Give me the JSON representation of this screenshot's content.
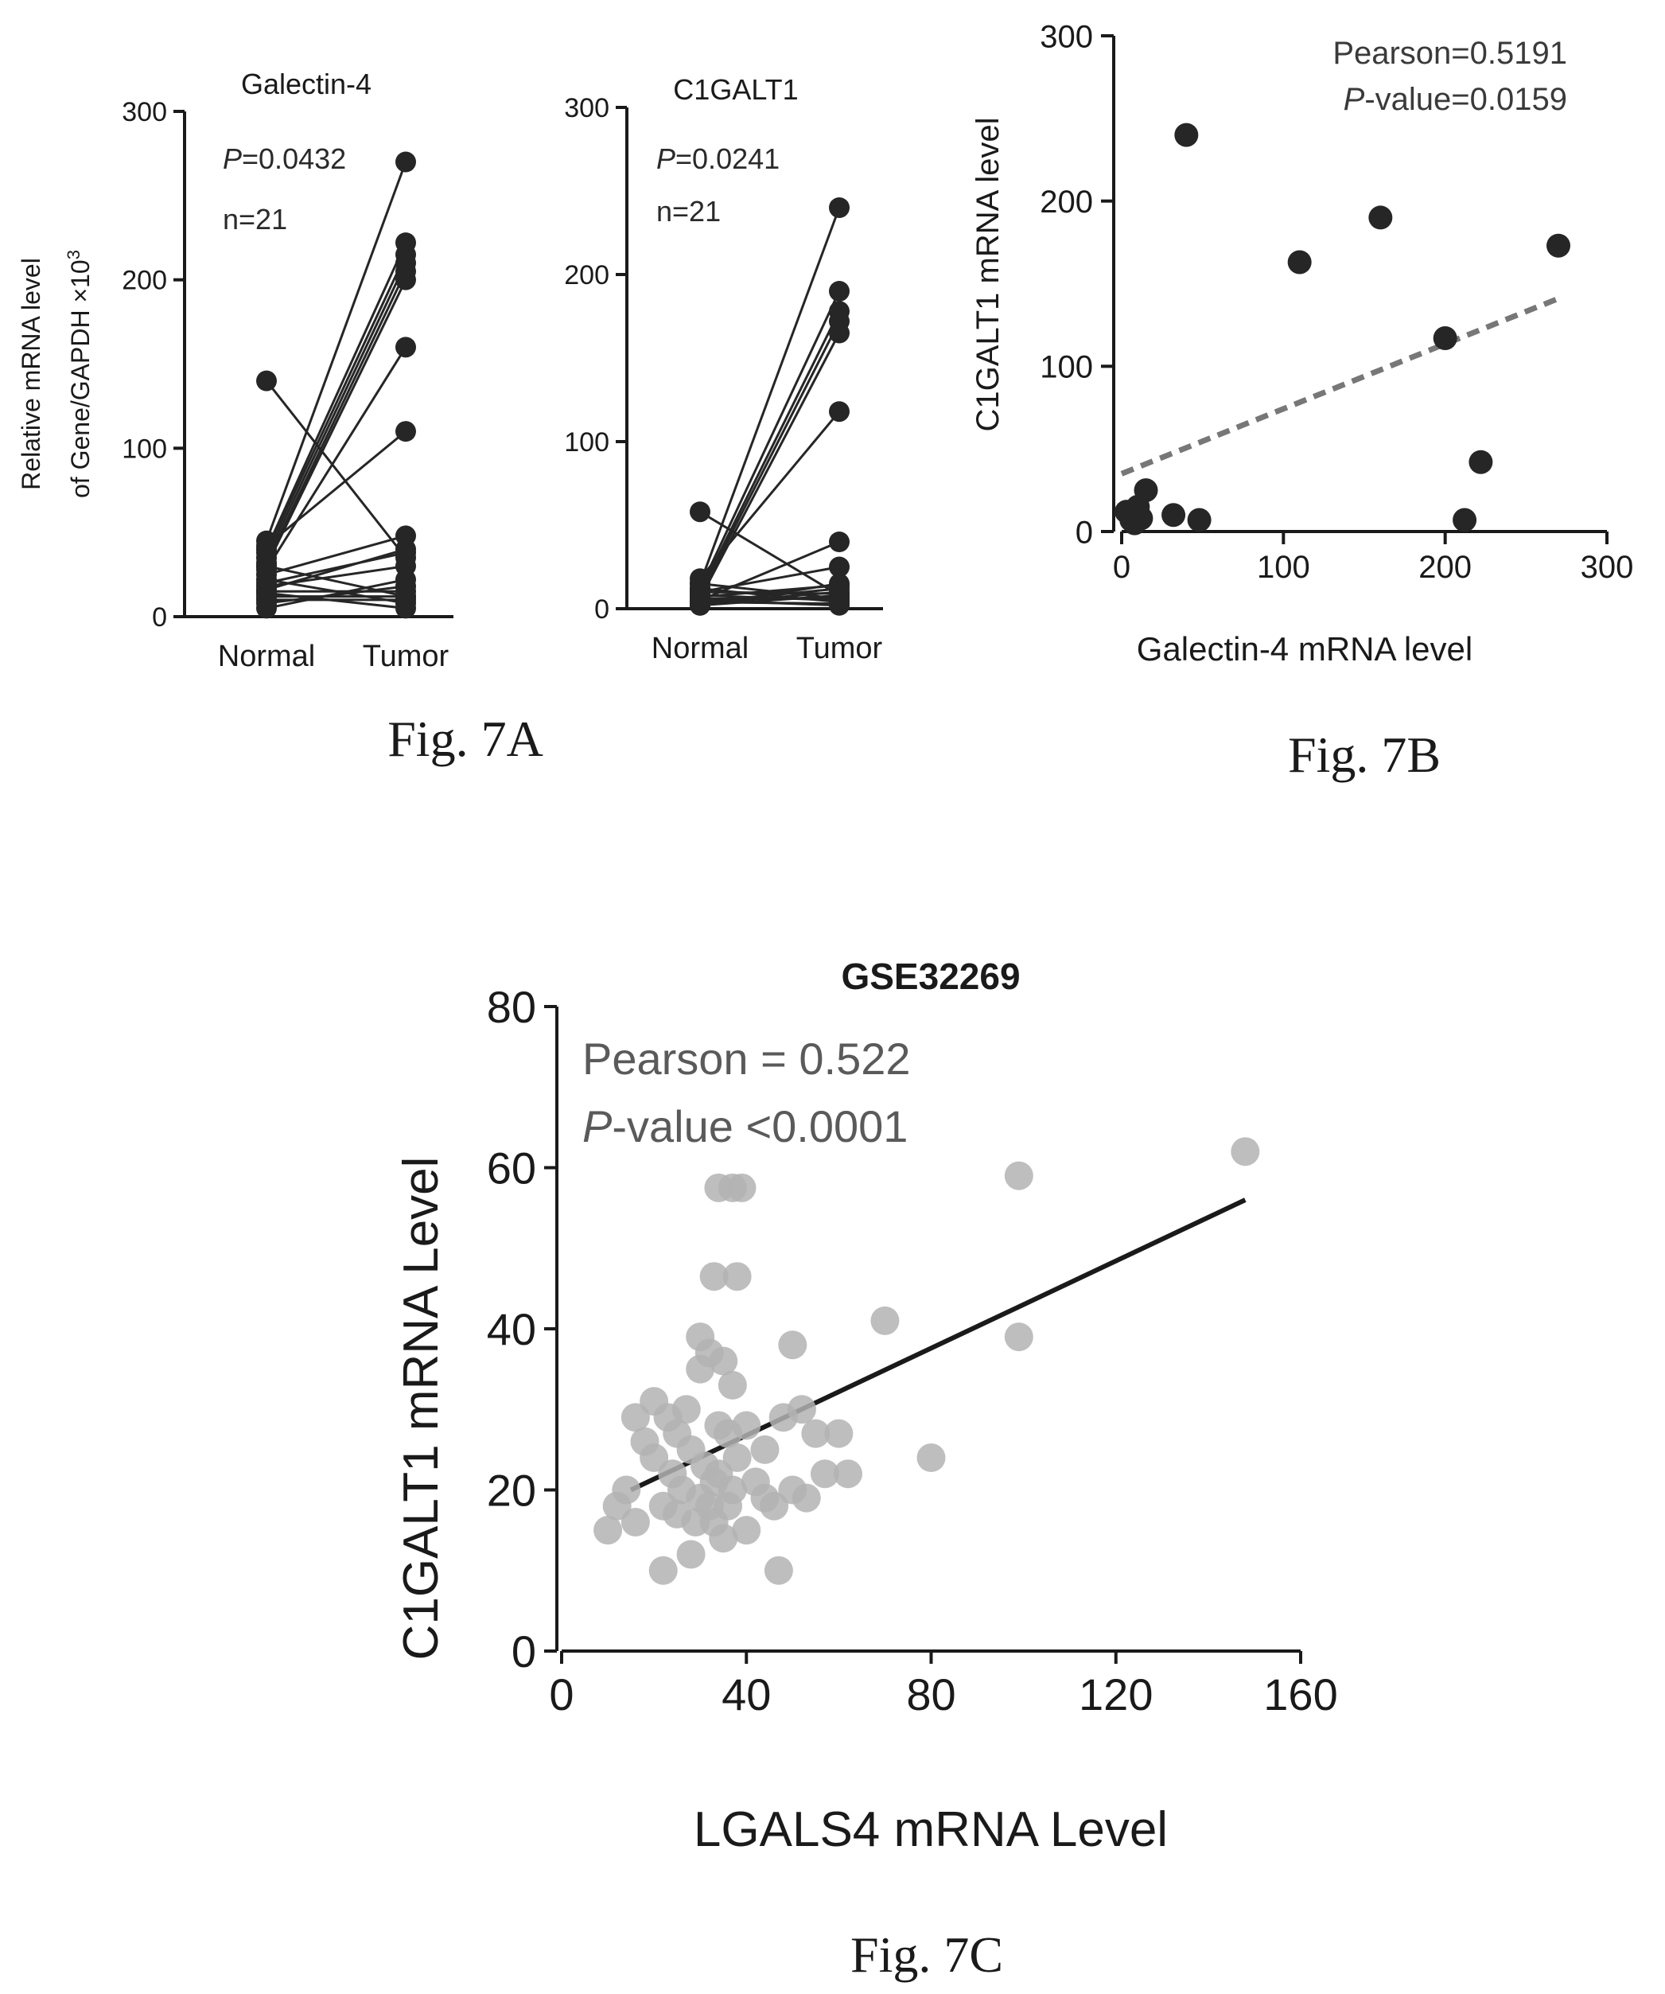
{
  "chart_data": [
    {
      "type": "line",
      "panel": "7A-left",
      "title": "Galectin-4",
      "ylabel_line1": "Relative mRNA level",
      "ylabel_line2_prefix": "of Gene/GAPDH ×10",
      "ylabel_exponent": "3",
      "annotations": {
        "p_symbol": "P",
        "p_text": "=0.0432",
        "n_text": "n=21"
      },
      "categories": [
        "Normal",
        "Tumor"
      ],
      "yticks": [
        "0",
        "100",
        "200",
        "300"
      ],
      "ylim": [
        0,
        300
      ],
      "pairs": [
        [
          140,
          35
        ],
        [
          45,
          270
        ],
        [
          40,
          222
        ],
        [
          38,
          215
        ],
        [
          35,
          210
        ],
        [
          32,
          205
        ],
        [
          30,
          200
        ],
        [
          28,
          160
        ],
        [
          42,
          110
        ],
        [
          25,
          48
        ],
        [
          20,
          38
        ],
        [
          18,
          30
        ],
        [
          15,
          15
        ],
        [
          12,
          12
        ],
        [
          10,
          10
        ],
        [
          22,
          8
        ],
        [
          8,
          18
        ],
        [
          14,
          5
        ],
        [
          5,
          22
        ],
        [
          30,
          12
        ],
        [
          16,
          40
        ]
      ]
    },
    {
      "type": "line",
      "panel": "7A-right",
      "title": "C1GALT1",
      "annotations": {
        "p_symbol": "P",
        "p_text": "=0.0241",
        "n_text": "n=21"
      },
      "categories": [
        "Normal",
        "Tumor"
      ],
      "yticks": [
        "0",
        "100",
        "200",
        "300"
      ],
      "ylim": [
        0,
        300
      ],
      "pairs": [
        [
          58,
          8
        ],
        [
          15,
          240
        ],
        [
          12,
          190
        ],
        [
          10,
          178
        ],
        [
          8,
          172
        ],
        [
          6,
          165
        ],
        [
          18,
          118
        ],
        [
          5,
          40
        ],
        [
          10,
          25
        ],
        [
          4,
          12
        ],
        [
          3,
          10
        ],
        [
          2,
          8
        ],
        [
          6,
          6
        ],
        [
          8,
          5
        ],
        [
          12,
          4
        ],
        [
          4,
          3
        ],
        [
          2,
          15
        ],
        [
          15,
          6
        ],
        [
          10,
          9
        ],
        [
          5,
          2
        ],
        [
          7,
          14
        ]
      ]
    },
    {
      "type": "scatter",
      "panel": "7B",
      "xlabel": "Galectin-4 mRNA level",
      "ylabel": "C1GALT1 mRNA level",
      "annotations": {
        "line1": "Pearson=0.5191",
        "p_symbol": "P",
        "p_text": "-value=0.0159"
      },
      "xticks": [
        "0",
        "100",
        "200",
        "300"
      ],
      "yticks": [
        "0",
        "100",
        "200",
        "300"
      ],
      "xlim": [
        0,
        300
      ],
      "ylim": [
        0,
        300
      ],
      "points": [
        [
          40,
          240
        ],
        [
          160,
          190
        ],
        [
          270,
          173
        ],
        [
          110,
          163
        ],
        [
          200,
          117
        ],
        [
          222,
          42
        ],
        [
          212,
          7
        ],
        [
          48,
          7
        ],
        [
          32,
          10
        ],
        [
          15,
          25
        ],
        [
          10,
          15
        ],
        [
          5,
          10
        ],
        [
          8,
          5
        ],
        [
          12,
          8
        ],
        [
          3,
          12
        ],
        [
          6,
          7
        ]
      ],
      "fit": {
        "style": "dashed",
        "x": [
          0,
          270
        ],
        "y": [
          35,
          141
        ]
      }
    },
    {
      "type": "scatter",
      "panel": "7C",
      "title": "GSE32269",
      "xlabel": "LGALS4 mRNA Level",
      "ylabel": "C1GALT1 mRNA Level",
      "annotations": {
        "line1": "Pearson = 0.522",
        "p_symbol": "P",
        "p_text": "-value <0.0001"
      },
      "xticks": [
        "0",
        "40",
        "80",
        "120",
        "160"
      ],
      "yticks": [
        "0",
        "20",
        "40",
        "60",
        "80"
      ],
      "xlim": [
        0,
        160
      ],
      "ylim": [
        0,
        80
      ],
      "points": [
        [
          148,
          62
        ],
        [
          99,
          59
        ],
        [
          34,
          57.5
        ],
        [
          37,
          57.5
        ],
        [
          39,
          57.5
        ],
        [
          30,
          39
        ],
        [
          32,
          37
        ],
        [
          70,
          41
        ],
        [
          99,
          39
        ],
        [
          50,
          38
        ],
        [
          35,
          36
        ],
        [
          37,
          33
        ],
        [
          30,
          35
        ],
        [
          33,
          46.5
        ],
        [
          38,
          46.5
        ],
        [
          20,
          31
        ],
        [
          23,
          29
        ],
        [
          27,
          30
        ],
        [
          16,
          29
        ],
        [
          18,
          26
        ],
        [
          25,
          27
        ],
        [
          34,
          28
        ],
        [
          36,
          27
        ],
        [
          40,
          28
        ],
        [
          44,
          25
        ],
        [
          48,
          29
        ],
        [
          52,
          30
        ],
        [
          55,
          27
        ],
        [
          60,
          27
        ],
        [
          20,
          24
        ],
        [
          24,
          22
        ],
        [
          28,
          25
        ],
        [
          31,
          23
        ],
        [
          34,
          22
        ],
        [
          38,
          24
        ],
        [
          42,
          21
        ],
        [
          26,
          20
        ],
        [
          30,
          19
        ],
        [
          33,
          21
        ],
        [
          37,
          20
        ],
        [
          22,
          18
        ],
        [
          25,
          17
        ],
        [
          29,
          16
        ],
        [
          32,
          18
        ],
        [
          36,
          18
        ],
        [
          44,
          19
        ],
        [
          46,
          18
        ],
        [
          50,
          20
        ],
        [
          53,
          19
        ],
        [
          57,
          22
        ],
        [
          62,
          22
        ],
        [
          80,
          24
        ],
        [
          10,
          15
        ],
        [
          12,
          18
        ],
        [
          14,
          20
        ],
        [
          16,
          16
        ],
        [
          40,
          15
        ],
        [
          35,
          14
        ],
        [
          33,
          16
        ],
        [
          22,
          10
        ],
        [
          47,
          10
        ],
        [
          28,
          12
        ]
      ],
      "fit": {
        "style": "solid",
        "x": [
          15,
          148
        ],
        "y": [
          20,
          56
        ]
      }
    }
  ],
  "captions": {
    "fig7a": "Fig. 7A",
    "fig7b": "Fig. 7B",
    "fig7c": "Fig. 7C"
  },
  "colors": {
    "dark_marker": "#262626",
    "grey_marker": "#b3b3b3",
    "axis": "#1a1a1a",
    "fit_dashed": "#777777",
    "fit_solid": "#1a1a1a",
    "annotation_grey": "#5a5a5a"
  }
}
